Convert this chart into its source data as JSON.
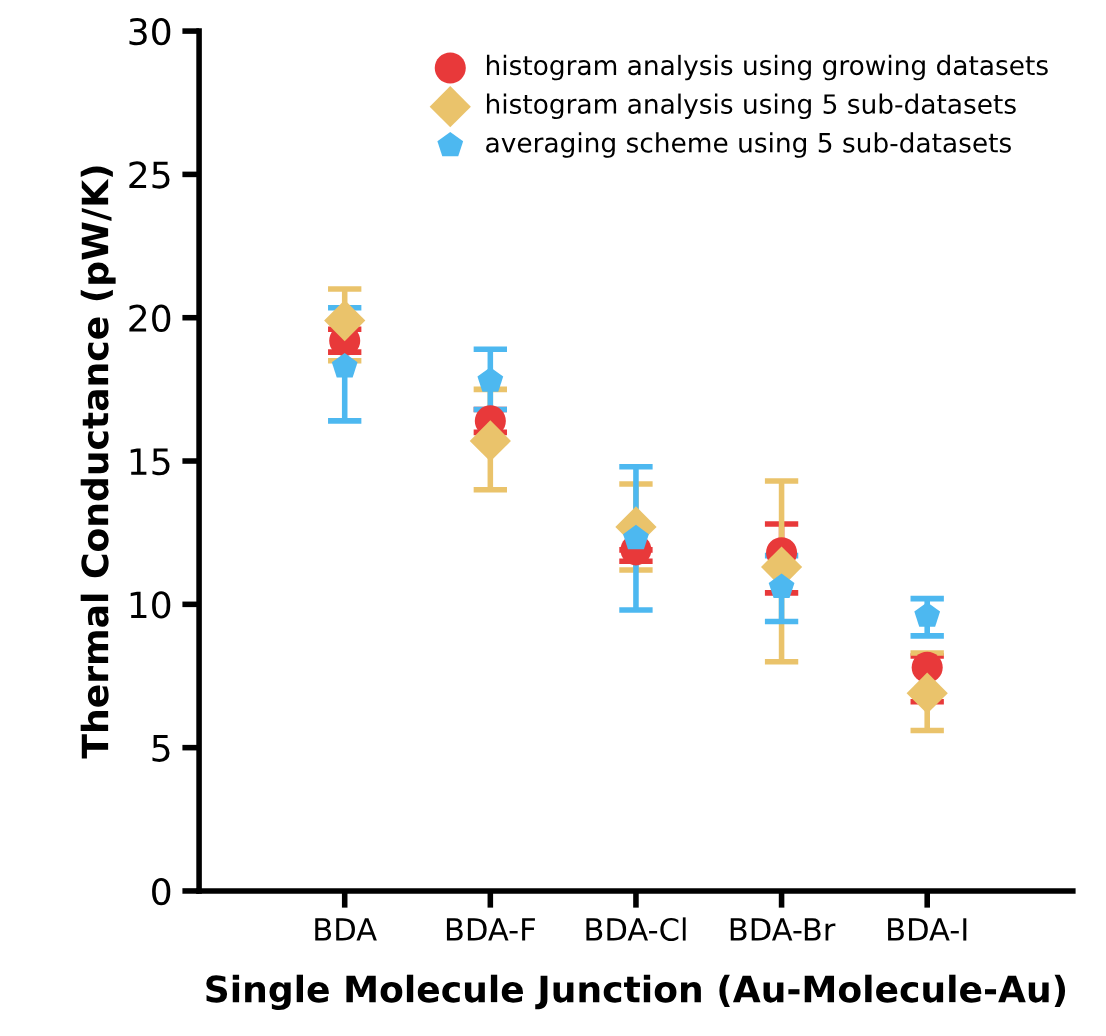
{
  "chart_data": {
    "type": "scatter",
    "xlabel": "Single Molecule Junction (Au-Molecule-Au)",
    "ylabel": "Thermal Conductance (pW/K)",
    "categories": [
      "BDA",
      "BDA-F",
      "BDA-Cl",
      "BDA-Br",
      "BDA-I"
    ],
    "ylim": [
      0,
      30
    ],
    "yticks": [
      0,
      5,
      10,
      15,
      20,
      25,
      30
    ],
    "grid": false,
    "legend": "top right",
    "series": [
      {
        "name": "histogram analysis using growing datasets",
        "color": "#e8393a",
        "marker": "circle",
        "values": [
          19.2,
          16.4,
          11.9,
          11.8,
          7.8
        ],
        "errors": [
          [
            18.8,
            19.6
          ],
          [
            16.0,
            16.8
          ],
          [
            11.5,
            11.9
          ],
          [
            10.4,
            12.8
          ],
          [
            6.6,
            8.2
          ]
        ]
      },
      {
        "name": "histogram analysis using 5 sub-datasets",
        "color": "#eac36b",
        "marker": "diamond",
        "values": [
          19.9,
          15.7,
          12.7,
          11.3,
          6.9
        ],
        "errors": [
          [
            18.5,
            21.0
          ],
          [
            14.0,
            17.5
          ],
          [
            11.2,
            14.2
          ],
          [
            8.0,
            14.3
          ],
          [
            5.6,
            8.3
          ]
        ]
      },
      {
        "name": "averaging scheme using 5 sub-datasets",
        "color": "#4db8f0",
        "values": [
          18.3,
          17.8,
          12.3,
          10.6,
          9.6
        ],
        "errors": [
          [
            16.4,
            20.35
          ],
          [
            16.8,
            18.9
          ],
          [
            9.8,
            14.8
          ],
          [
            9.4,
            11.7
          ],
          [
            8.9,
            10.2
          ]
        ]
      }
    ]
  }
}
